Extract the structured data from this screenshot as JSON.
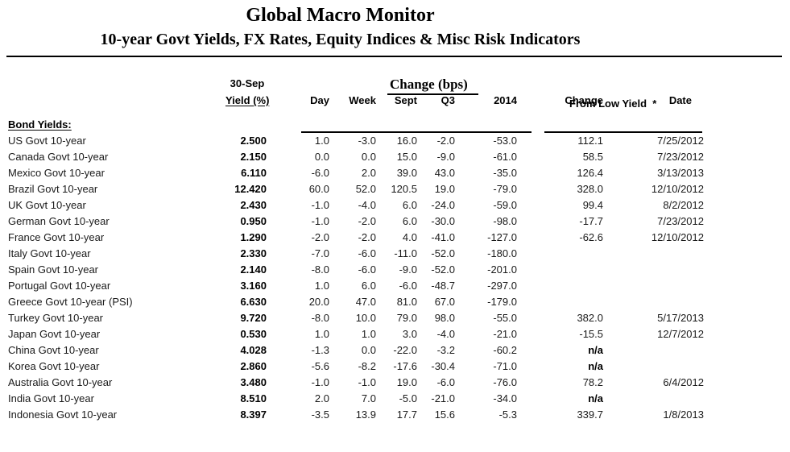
{
  "header": {
    "title": "Global Macro Monitor",
    "subtitle": "10-year Govt Yields, FX Rates, Equity Indices & Misc Risk Indicators"
  },
  "table": {
    "group_headers": {
      "change_bps": "Change (bps)",
      "as_of": "30-Sep",
      "from_low_yield": "From Low Yield  *"
    },
    "columns": {
      "yield": "Yield (%)",
      "day": "Day",
      "week": "Week",
      "sept": "Sept",
      "q3": "Q3",
      "y2014": "2014",
      "change": "Change",
      "date": "Date"
    },
    "section_label": "Bond Yields:",
    "rows": [
      {
        "name": "US Govt 10-year",
        "yield": "2.500",
        "day": "1.0",
        "week": "-3.0",
        "sept": "16.0",
        "q3": "-2.0",
        "y2014": "-53.0",
        "change": "112.1",
        "date": "7/25/2012"
      },
      {
        "name": "Canada Govt 10-year",
        "yield": "2.150",
        "day": "0.0",
        "week": "0.0",
        "sept": "15.0",
        "q3": "-9.0",
        "y2014": "-61.0",
        "change": "58.5",
        "date": "7/23/2012"
      },
      {
        "name": "Mexico Govt 10-year",
        "yield": "6.110",
        "day": "-6.0",
        "week": "2.0",
        "sept": "39.0",
        "q3": "43.0",
        "y2014": "-35.0",
        "change": "126.4",
        "date": "3/13/2013"
      },
      {
        "name": "Brazil Govt 10-year",
        "yield": "12.420",
        "day": "60.0",
        "week": "52.0",
        "sept": "120.5",
        "q3": "19.0",
        "y2014": "-79.0",
        "change": "328.0",
        "date": "12/10/2012"
      },
      {
        "name": "UK Govt 10-year",
        "yield": "2.430",
        "day": "-1.0",
        "week": "-4.0",
        "sept": "6.0",
        "q3": "-24.0",
        "y2014": "-59.0",
        "change": "99.4",
        "date": "8/2/2012"
      },
      {
        "name": "German Govt 10-year",
        "yield": "0.950",
        "day": "-1.0",
        "week": "-2.0",
        "sept": "6.0",
        "q3": "-30.0",
        "y2014": "-98.0",
        "change": "-17.7",
        "date": "7/23/2012"
      },
      {
        "name": "France Govt 10-year",
        "yield": "1.290",
        "day": "-2.0",
        "week": "-2.0",
        "sept": "4.0",
        "q3": "-41.0",
        "y2014": "-127.0",
        "change": "-62.6",
        "date": "12/10/2012"
      },
      {
        "name": "Italy Govt 10-year",
        "yield": "2.330",
        "day": "-7.0",
        "week": "-6.0",
        "sept": "-11.0",
        "q3": "-52.0",
        "y2014": "-180.0",
        "change": "",
        "date": ""
      },
      {
        "name": "Spain Govt 10-year",
        "yield": "2.140",
        "day": "-8.0",
        "week": "-6.0",
        "sept": "-9.0",
        "q3": "-52.0",
        "y2014": "-201.0",
        "change": "",
        "date": ""
      },
      {
        "name": "Portugal Govt 10-year",
        "yield": "3.160",
        "day": "1.0",
        "week": "6.0",
        "sept": "-6.0",
        "q3": "-48.7",
        "y2014": "-297.0",
        "change": "",
        "date": ""
      },
      {
        "name": "Greece Govt 10-year (PSI)",
        "yield": "6.630",
        "day": "20.0",
        "week": "47.0",
        "sept": "81.0",
        "q3": "67.0",
        "y2014": "-179.0",
        "change": "",
        "date": ""
      },
      {
        "name": "Turkey Govt 10-year",
        "yield": "9.720",
        "day": "-8.0",
        "week": "10.0",
        "sept": "79.0",
        "q3": "98.0",
        "y2014": "-55.0",
        "change": "382.0",
        "date": "5/17/2013"
      },
      {
        "name": "Japan Govt 10-year",
        "yield": "0.530",
        "day": "1.0",
        "week": "1.0",
        "sept": "3.0",
        "q3": "-4.0",
        "y2014": "-21.0",
        "change": "-15.5",
        "date": "12/7/2012"
      },
      {
        "name": "China Govt 10-year",
        "yield": "4.028",
        "day": "-1.3",
        "week": "0.0",
        "sept": "-22.0",
        "q3": "-3.2",
        "y2014": "-60.2",
        "change": "n/a",
        "date": ""
      },
      {
        "name": "Korea Govt 10-year",
        "yield": "2.860",
        "day": "-5.6",
        "week": "-8.2",
        "sept": "-17.6",
        "q3": "-30.4",
        "y2014": "-71.0",
        "change": "n/a",
        "date": ""
      },
      {
        "name": "Australia Govt 10-year",
        "yield": "3.480",
        "day": "-1.0",
        "week": "-1.0",
        "sept": "19.0",
        "q3": "-6.0",
        "y2014": "-76.0",
        "change": "78.2",
        "date": "6/4/2012"
      },
      {
        "name": "India Govt 10-year",
        "yield": "8.510",
        "day": "2.0",
        "week": "7.0",
        "sept": "-5.0",
        "q3": "-21.0",
        "y2014": "-34.0",
        "change": "n/a",
        "date": ""
      },
      {
        "name": "Indonesia Govt 10-year",
        "yield": "8.397",
        "day": "-3.5",
        "week": "13.9",
        "sept": "17.7",
        "q3": "15.6",
        "y2014": "-5.3",
        "change": "339.7",
        "date": "1/8/2013"
      }
    ]
  },
  "colors": {
    "text": "#1a1a1a",
    "emphasis": "#000000",
    "background": "#ffffff",
    "rule": "#000000"
  }
}
